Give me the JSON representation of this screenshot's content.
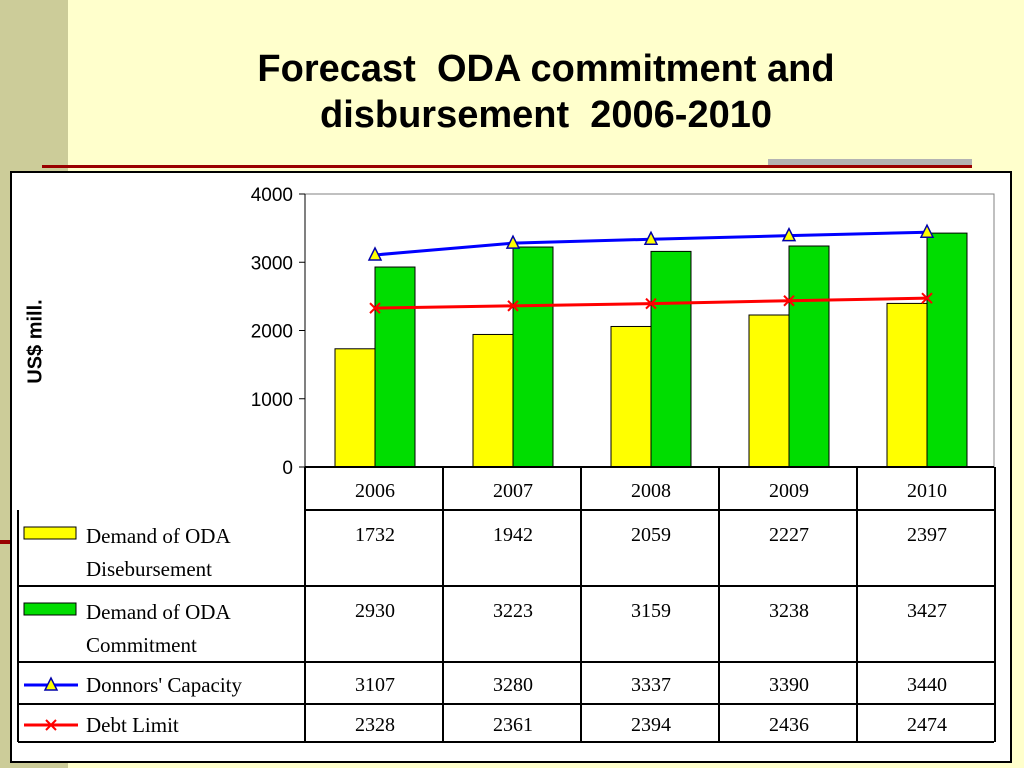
{
  "page": {
    "title": "Forecast  ODA commitment and\ndisbursement  2006-2010"
  },
  "colors": {
    "disbursement": "#ffff00",
    "commitment": "#00dd00",
    "capacity": "#0000ff",
    "debt": "#ff0000"
  },
  "chart_data": {
    "type": "bar",
    "categories": [
      "2006",
      "2007",
      "2008",
      "2009",
      "2010"
    ],
    "ylabel": "US$ mill.",
    "ylim": [
      0,
      4000
    ],
    "yticks": [
      "0",
      "1000",
      "2000",
      "3000",
      "4000"
    ],
    "grid": false,
    "legend": "data-table-below",
    "series": [
      {
        "name": "Demand of ODA Disebursement",
        "label_lines": [
          "Demand of ODA",
          "Disebursement"
        ],
        "kind": "bar",
        "values": [
          1732,
          1942,
          2059,
          2227,
          2397
        ]
      },
      {
        "name": "Demand of ODA Commitment",
        "label_lines": [
          "Demand of ODA",
          "Commitment"
        ],
        "kind": "bar",
        "values": [
          2930,
          3223,
          3159,
          3238,
          3427
        ]
      },
      {
        "name": "Donnors' Capacity",
        "label_lines": [
          "Donnors' Capacity"
        ],
        "kind": "line",
        "marker": "triangle",
        "values": [
          3107,
          3280,
          3337,
          3390,
          3440
        ]
      },
      {
        "name": "Debt Limit",
        "label_lines": [
          "Debt Limit"
        ],
        "kind": "line",
        "marker": "x",
        "values": [
          2328,
          2361,
          2394,
          2436,
          2474
        ]
      }
    ]
  }
}
